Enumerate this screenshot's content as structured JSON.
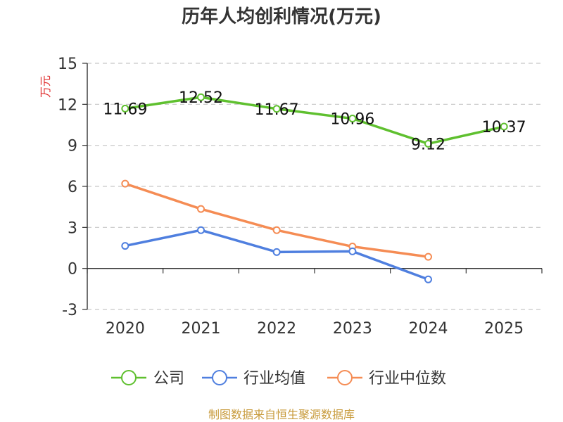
{
  "chart_data": {
    "type": "line",
    "title": "历年人均创利情况(万元)",
    "ylabel": "万元",
    "categories": [
      "2020",
      "2021",
      "2022",
      "2023",
      "2024",
      "2025"
    ],
    "ylim": [
      -3,
      15
    ],
    "yticks": [
      -3,
      0,
      3,
      6,
      9,
      12,
      15
    ],
    "grid": true,
    "legend_position": "bottom",
    "series": [
      {
        "name": "公司",
        "color": "#5fc02f",
        "values": [
          11.69,
          12.52,
          11.67,
          10.96,
          9.12,
          10.37
        ],
        "labels": [
          "11.69",
          "12.52",
          "11.67",
          "10.96",
          "9.12",
          "10.37"
        ]
      },
      {
        "name": "行业均值",
        "color": "#4f7fdf",
        "values": [
          1.65,
          2.8,
          1.2,
          1.25,
          -0.8,
          null
        ]
      },
      {
        "name": "行业中位数",
        "color": "#f58c54",
        "values": [
          6.2,
          4.35,
          2.8,
          1.6,
          0.85,
          null
        ]
      }
    ]
  },
  "source": "制图数据来自恒生聚源数据库"
}
